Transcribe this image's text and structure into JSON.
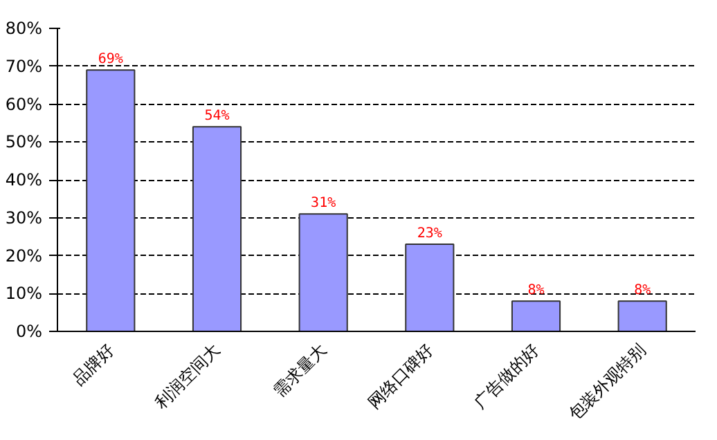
{
  "chart_data": {
    "type": "bar",
    "categories": [
      "品牌好",
      "利润空间大",
      "需求量大",
      "网络口碑好",
      "广告做的好",
      "包装外观特别"
    ],
    "values": [
      69,
      54,
      31,
      23,
      8,
      8
    ],
    "value_labels": [
      "69%",
      "54%",
      "31%",
      "23%",
      "8%",
      "8%"
    ],
    "color": "#9999ff",
    "ylim": [
      0,
      80
    ],
    "yticks": [
      {
        "value": 0,
        "label": "0%"
      },
      {
        "value": 10,
        "label": "10%"
      },
      {
        "value": 20,
        "label": "20%"
      },
      {
        "value": 30,
        "label": "30%"
      },
      {
        "value": 40,
        "label": "40%"
      },
      {
        "value": 50,
        "label": "50%"
      },
      {
        "value": 60,
        "label": "60%"
      },
      {
        "value": 70,
        "label": "70%"
      },
      {
        "value": 80,
        "label": "80%"
      }
    ],
    "grid": "y"
  }
}
